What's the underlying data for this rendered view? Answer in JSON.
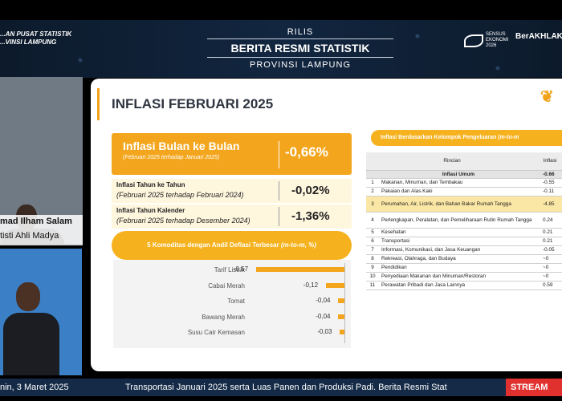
{
  "header": {
    "bps_line1": "...AN PUSAT STATISTIK",
    "bps_line2": "...VINSI LAMPUNG",
    "rilis": "RILIS",
    "berita": "BERITA RESMI STATISTIK",
    "provinsi": "PROVINSI LAMPUNG",
    "sensus_line1": "SENSUS",
    "sensus_line2": "EKONOMI",
    "sensus_year": "2026",
    "berakhlak": "BerAKHLAK"
  },
  "speaker": {
    "name": "mad Ilham Salam",
    "title": "tisti Ahli Madya"
  },
  "slide": {
    "title": "INFLASI FEBRUARI 2025",
    "mtm_label": "Inflasi Bulan ke Bulan",
    "mtm_sub": "(Februari 2025 terhadap Januari 2025)",
    "mtm_value": "-0,66%",
    "yoy_label": "Inflasi Tahun ke Tahun",
    "yoy_sub": "(Februari 2025 terhadap Februari 2024)",
    "yoy_value": "-0,02%",
    "ytd_label": "Inflasi Tahun Kalender",
    "ytd_sub": "(Februari 2025 terhadap Desember 2024)",
    "ytd_value": "-1,36%",
    "komoditas_title": "5 Komoditas dengan Andil Deflasi Terbesar",
    "komoditas_unit": "(m-to-m, %)",
    "table_title": "Inflasi Berdasarkan Kelompok Pengeluaran",
    "table_title_unit": "(m-to-m",
    "col_rincian": "Rincian",
    "col_inflasi": "Inflasi"
  },
  "chart_data": {
    "type": "bar",
    "orientation": "horizontal",
    "title": "5 Komoditas dengan Andil Deflasi Terbesar (m-to-m, %)",
    "categories": [
      "Tarif Listrik",
      "Cabai Merah",
      "Tomat",
      "Bawang Merah",
      "Susu Cair Kemasan"
    ],
    "values": [
      -0.57,
      -0.12,
      -0.04,
      -0.04,
      -0.03
    ],
    "labels": [
      "-0,57",
      "-0,12",
      "-0,04",
      "-0,04",
      "-0,03"
    ],
    "xlim": [
      -0.6,
      0
    ]
  },
  "table": {
    "general_label": "Inflasi Umum",
    "general_value": "-0.66",
    "rows": [
      {
        "no": "1",
        "label": "Makanan, Minuman, dan Tembakau",
        "value": "-0.55"
      },
      {
        "no": "2",
        "label": "Pakaian dan Alas Kaki",
        "value": "-0.11"
      },
      {
        "no": "3",
        "label": "Perumahan, Air, Listrik, dan Bahan Bakar Rumah Tangga",
        "value": "-4.85"
      },
      {
        "no": "4",
        "label": "Perlengkapan, Peralatan, dan Pemeliharaan Rutin Rumah Tangga",
        "value": "0.24"
      },
      {
        "no": "5",
        "label": "Kesehatan",
        "value": "0.21"
      },
      {
        "no": "6",
        "label": "Transportasi",
        "value": "0.21"
      },
      {
        "no": "7",
        "label": "Informasi, Komunikasi, dan Jasa Keuangan",
        "value": "-0.05"
      },
      {
        "no": "8",
        "label": "Rekreasi, Olahraga, dan Budaya",
        "value": "~0"
      },
      {
        "no": "9",
        "label": "Pendidikan",
        "value": "~0"
      },
      {
        "no": "10",
        "label": "Penyediaan Makanan dan Minuman/Restoran",
        "value": "~0"
      },
      {
        "no": "11",
        "label": "Perawatan Pribadi dan Jasa Lainnya",
        "value": "0.59"
      }
    ]
  },
  "ticker": {
    "date": "nin, 3 Maret 2025",
    "news": "Transportasi Januari 2025 serta Luas Panen dan Produksi Padi. Berita Resmi Stat",
    "stream": "STREAM"
  }
}
